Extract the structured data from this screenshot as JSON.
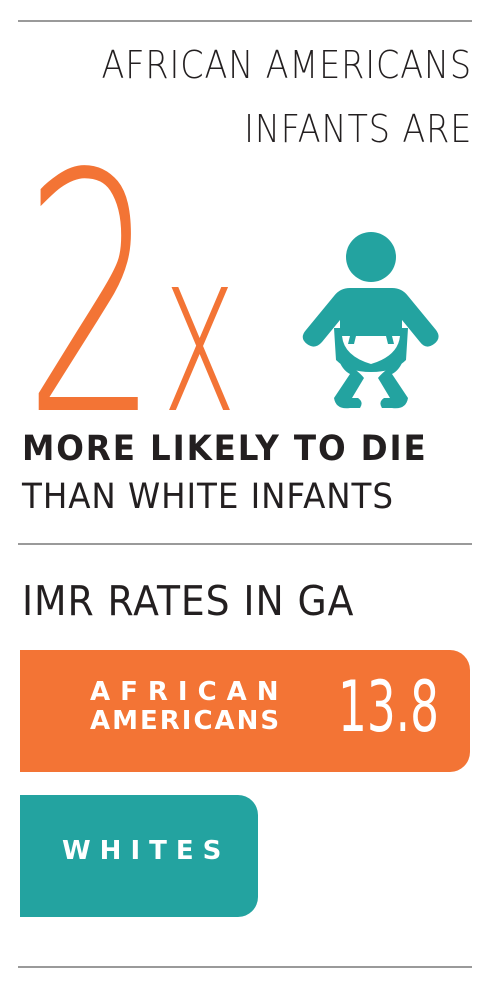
{
  "headline": {
    "line1": "AFRICAN AMERICANS",
    "line2": "INFANTS ARE",
    "multiplier_number": "2",
    "multiplier_x": "x",
    "likely": "MORE LIKELY TO DIE",
    "than": "THAN WHITE INFANTS"
  },
  "imr": {
    "title": "IMR RATES IN GA",
    "rows": [
      {
        "label_line1": "AFRICAN",
        "label_line2": "AMERICANS",
        "value": "13.8",
        "rate": 13.8
      },
      {
        "label": "WHITES",
        "value": "7.3",
        "rate": 7.3
      }
    ]
  },
  "colors": {
    "orange": "#f37435",
    "teal": "#23a3a0",
    "text": "#231f20",
    "rule": "#9a9a9a"
  },
  "icons": {
    "baby": "baby-diaper-icon"
  }
}
